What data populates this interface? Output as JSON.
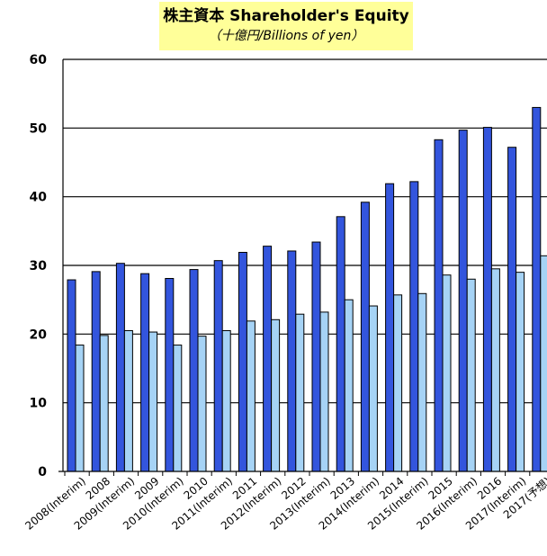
{
  "chart_data": {
    "type": "bar",
    "title": "株主資本 Shareholder's Equity",
    "subtitle": "（十億円/Billions of yen）",
    "categories": [
      "2008(Interim)",
      "2008",
      "2009(Interim)",
      "2009",
      "2010(Interim)",
      "2010",
      "2011(Interim)",
      "2011",
      "2012(Interim)",
      "2012",
      "2013(Interim)",
      "2013",
      "2014(Interim)",
      "2014",
      "2015(Interim)",
      "2015",
      "2016(Interim)",
      "2016",
      "2017(Interim)",
      "2017(予想)"
    ],
    "series": [
      {
        "color": "#3355dd",
        "values": [
          27.9,
          29.1,
          30.3,
          28.8,
          28.1,
          29.4,
          30.7,
          31.9,
          32.8,
          32.1,
          33.4,
          37.1,
          39.2,
          41.9,
          42.2,
          48.3,
          49.7,
          50.1,
          47.2,
          53.0
        ]
      },
      {
        "color": "#a6d3f5",
        "values": [
          18.4,
          19.8,
          20.5,
          20.3,
          18.4,
          19.7,
          20.5,
          21.9,
          22.1,
          22.9,
          23.2,
          25.0,
          24.1,
          25.7,
          25.9,
          28.6,
          28.0,
          29.5,
          29.0,
          31.4
        ]
      }
    ],
    "ylim": [
      0,
      60
    ],
    "yticks": [
      "0",
      "10",
      "20",
      "30",
      "40",
      "50",
      "60"
    ],
    "grid": true,
    "legend": "none"
  }
}
